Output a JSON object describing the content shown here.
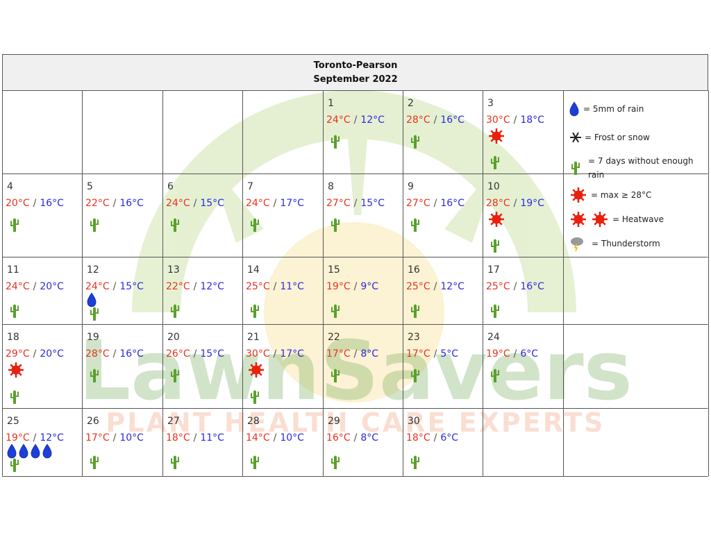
{
  "header": {
    "station": "Toronto-Pearson",
    "month": "September 2022"
  },
  "separator": "/",
  "days": [
    {
      "day": 1,
      "max": "24°C",
      "min": "12°C"
    },
    {
      "day": 2,
      "max": "28°C",
      "min": "16°C"
    },
    {
      "day": 3,
      "max": "30°C",
      "min": "18°C"
    },
    {
      "day": 4,
      "max": "20°C",
      "min": "16°C"
    },
    {
      "day": 5,
      "max": "22°C",
      "min": "16°C"
    },
    {
      "day": 6,
      "max": "24°C",
      "min": "15°C"
    },
    {
      "day": 7,
      "max": "24°C",
      "min": "17°C"
    },
    {
      "day": 8,
      "max": "27°C",
      "min": "15°C"
    },
    {
      "day": 9,
      "max": "27°C",
      "min": "16°C"
    },
    {
      "day": 10,
      "max": "28°C",
      "min": "19°C"
    },
    {
      "day": 11,
      "max": "24°C",
      "min": "20°C"
    },
    {
      "day": 12,
      "max": "24°C",
      "min": "15°C"
    },
    {
      "day": 13,
      "max": "22°C",
      "min": "12°C"
    },
    {
      "day": 14,
      "max": "25°C",
      "min": "11°C"
    },
    {
      "day": 15,
      "max": "19°C",
      "min": "9°C"
    },
    {
      "day": 16,
      "max": "25°C",
      "min": "12°C"
    },
    {
      "day": 17,
      "max": "25°C",
      "min": "16°C"
    },
    {
      "day": 18,
      "max": "29°C",
      "min": "20°C"
    },
    {
      "day": 19,
      "max": "28°C",
      "min": "16°C"
    },
    {
      "day": 20,
      "max": "26°C",
      "min": "15°C"
    },
    {
      "day": 21,
      "max": "30°C",
      "min": "17°C"
    },
    {
      "day": 22,
      "max": "17°C",
      "min": "8°C"
    },
    {
      "day": 23,
      "max": "17°C",
      "min": "5°C"
    },
    {
      "day": 24,
      "max": "19°C",
      "min": "6°C"
    },
    {
      "day": 25,
      "max": "19°C",
      "min": "12°C"
    },
    {
      "day": 26,
      "max": "17°C",
      "min": "10°C"
    },
    {
      "day": 27,
      "max": "18°C",
      "min": "11°C"
    },
    {
      "day": 28,
      "max": "14°C",
      "min": "10°C"
    },
    {
      "day": 29,
      "max": "16°C",
      "min": "8°C"
    },
    {
      "day": 30,
      "max": "18°C",
      "min": "6°C"
    }
  ],
  "legend": [
    "= 5mm of rain",
    "= Frost or snow",
    "= 7 days without enough rain",
    "= max ≥ 28°C",
    "= Heatwave",
    "= Thunderstorm"
  ],
  "watermark": {
    "brand": "LawnSavers",
    "tagline": "PLANT HEALTH CARE EXPERTS"
  }
}
